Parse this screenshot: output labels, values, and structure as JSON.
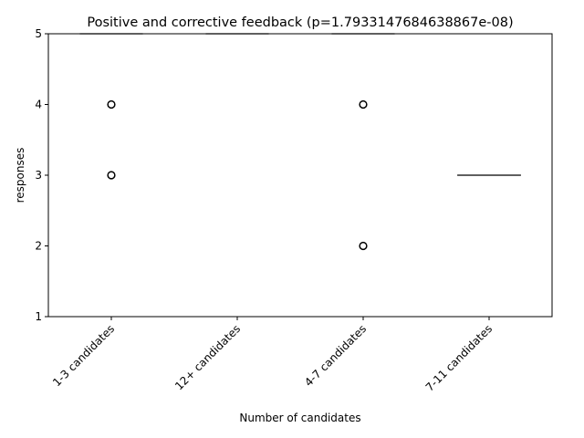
{
  "chart_data": {
    "type": "box",
    "title": "Positive and corrective feedback (p=1.7933147684638867e-08)",
    "xlabel": "Number of candidates",
    "ylabel": "responses",
    "ylim": [
      1,
      5
    ],
    "yticks": [
      "1",
      "2",
      "3",
      "4",
      "5"
    ],
    "grid": false,
    "categories": [
      "1-3 candidates",
      "12+ candidates",
      "4-7 candidates",
      "7-11 candidates"
    ],
    "boxes": [
      {
        "median": 5,
        "q1": 5,
        "q3": 5,
        "whisker_low": 5,
        "whisker_high": 5,
        "outliers": [
          4,
          3
        ]
      },
      {
        "median": 5,
        "q1": 5,
        "q3": 5,
        "whisker_low": 5,
        "whisker_high": 5,
        "outliers": []
      },
      {
        "median": 5,
        "q1": 5,
        "q3": 5,
        "whisker_low": 5,
        "whisker_high": 5,
        "outliers": [
          4,
          2
        ]
      },
      {
        "median": 3,
        "q1": 3,
        "q3": 3,
        "whisker_low": 3,
        "whisker_high": 3,
        "outliers": []
      }
    ],
    "colors": {
      "box": "#000000",
      "median": "#000000",
      "outlier": "#000000"
    }
  }
}
